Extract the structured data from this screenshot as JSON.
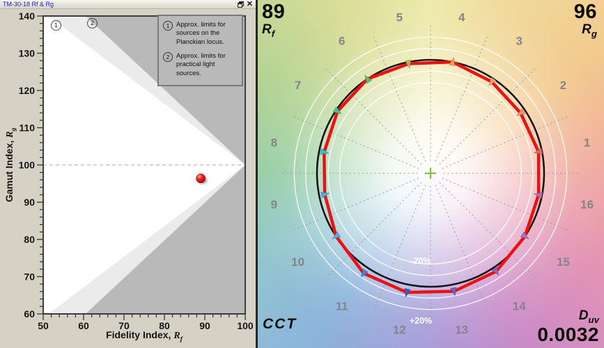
{
  "window": {
    "title": "TM-30-18 Rf & Rg",
    "close_glyph": "✕"
  },
  "chart_data": [
    {
      "id": "rf-rg-scatter",
      "type": "scatter",
      "xlabel": "Fidelity Index, Rf",
      "xlabel_parts": {
        "text": "Fidelity Index, ",
        "sym": "R",
        "sub": "f"
      },
      "ylabel": "Gamut Index, Rg",
      "ylabel_parts": {
        "text": "Gamut Index, ",
        "sym": "R",
        "sub": "g"
      },
      "xlim": [
        50,
        100
      ],
      "ylim": [
        60,
        140
      ],
      "xticks": [
        50,
        60,
        70,
        80,
        90,
        100
      ],
      "yticks": [
        60,
        70,
        80,
        90,
        100,
        110,
        120,
        130,
        140
      ],
      "minor_tick_step": 2,
      "reference_line_rg": 100,
      "points": [
        {
          "rf": 89,
          "rg": 96.4,
          "color": "#e01212"
        }
      ],
      "outside_fill": "#b9b9b9",
      "regions": [
        {
          "name": "limit-2-practical-light-sources",
          "fill": "#ebebeb",
          "poly": [
            [
              100,
              100
            ],
            [
              60.5,
              140
            ],
            [
              50,
              140
            ],
            [
              50,
              60
            ],
            [
              60.5,
              60
            ]
          ]
        },
        {
          "name": "limit-1-planckian-locus",
          "fill": "#ffffff",
          "poly": [
            [
              100,
              100
            ],
            [
              51.3,
              140
            ],
            [
              50,
              140
            ],
            [
              50,
              60
            ],
            [
              51.3,
              60
            ]
          ]
        }
      ],
      "legend": [
        {
          "marker": "1",
          "text": "Approx. limits for sources on the Planckian locus."
        },
        {
          "marker": "2",
          "text": "Approx. limits for practical light sources."
        }
      ],
      "grid": false,
      "legend_position": "top-right"
    },
    {
      "id": "color-vector-graphic",
      "type": "radar",
      "rf": 89,
      "rg": 96,
      "duv": "0.0032",
      "cct_label": "CCT",
      "rf_sym": {
        "sym": "R",
        "sub": "f"
      },
      "rg_sym": {
        "sym": "R",
        "sub": "g"
      },
      "duv_sym": {
        "sym": "D",
        "sub": "uv"
      },
      "ring_label_minus": "-20%",
      "ring_label_plus": "+20%",
      "rings_pct": [
        80,
        90,
        110,
        120
      ],
      "reference_circle_pct": 100,
      "reference_color": "#151515",
      "test_color": "#ee1111",
      "center_cross_color": "#85c045",
      "bins": [
        {
          "bin": 1,
          "rel_radius": 0.97,
          "color": "#e06a6a"
        },
        {
          "bin": 2,
          "rel_radius": 0.955,
          "color": "#e8906a"
        },
        {
          "bin": 3,
          "rel_radius": 0.97,
          "color": "#ef9a70"
        },
        {
          "bin": 4,
          "rel_radius": 1.0,
          "color": "#e8a24e"
        },
        {
          "bin": 5,
          "rel_radius": 0.985,
          "color": "#b3b14c"
        },
        {
          "bin": 6,
          "rel_radius": 1.0,
          "color": "#5abb6e"
        },
        {
          "bin": 7,
          "rel_radius": 0.985,
          "color": "#3ec29b"
        },
        {
          "bin": 8,
          "rel_radius": 0.955,
          "color": "#30bfc4"
        },
        {
          "bin": 9,
          "rel_radius": 0.95,
          "color": "#3fb0d8"
        },
        {
          "bin": 10,
          "rel_radius": 1.0,
          "color": "#58a8e0"
        },
        {
          "bin": 11,
          "rel_radius": 1.06,
          "color": "#3a86d2"
        },
        {
          "bin": 12,
          "rel_radius": 1.07,
          "color": "#3b5cb8"
        },
        {
          "bin": 13,
          "rel_radius": 1.06,
          "color": "#6a5ec0"
        },
        {
          "bin": 14,
          "rel_radius": 1.04,
          "color": "#8866c4"
        },
        {
          "bin": 15,
          "rel_radius": 1.0,
          "color": "#a573c8"
        },
        {
          "bin": 16,
          "rel_radius": 0.97,
          "color": "#c06aaa"
        }
      ],
      "wheel_colors": [
        {
          "deg": 0,
          "color": "#ede9a8"
        },
        {
          "deg": 55,
          "color": "#f3c98e"
        },
        {
          "deg": 90,
          "color": "#f0a8a0"
        },
        {
          "deg": 120,
          "color": "#e293b4"
        },
        {
          "deg": 150,
          "color": "#cc8cc8"
        },
        {
          "deg": 180,
          "color": "#a89ad8"
        },
        {
          "deg": 215,
          "color": "#8cb4dc"
        },
        {
          "deg": 245,
          "color": "#93c8cc"
        },
        {
          "deg": 270,
          "color": "#95cda5"
        },
        {
          "deg": 300,
          "color": "#b4d494"
        },
        {
          "deg": 330,
          "color": "#d8dd96"
        },
        {
          "deg": 360,
          "color": "#ede9a8"
        }
      ]
    }
  ]
}
